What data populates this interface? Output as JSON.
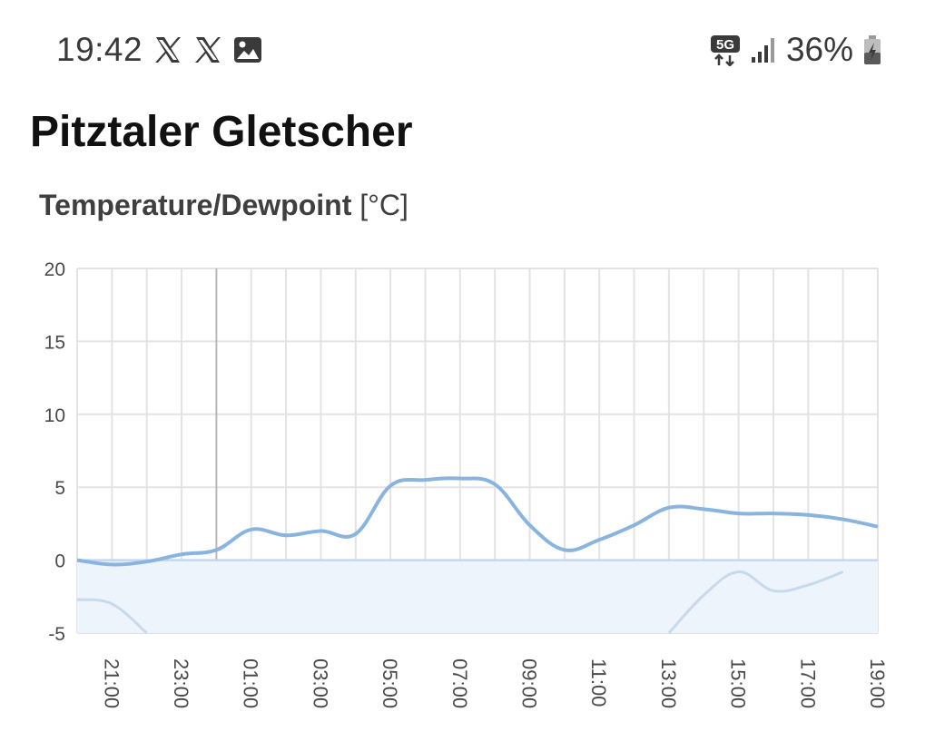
{
  "status_bar": {
    "time": "19:42",
    "battery": "36%",
    "left_icons": [
      "x-logo-icon",
      "x-logo-icon",
      "image-icon"
    ],
    "right_icons": [
      "5g-icon",
      "signal-icon",
      "battery-charging-icon"
    ]
  },
  "page": {
    "title": "Pitztaler Gletscher"
  },
  "chart_data": {
    "type": "line",
    "title": "Temperature/Dewpoint",
    "title_unit": "[°C]",
    "ylim": [
      -5,
      20
    ],
    "y_ticks": [
      20,
      15,
      10,
      5,
      0,
      -5
    ],
    "x_tick_labels": [
      "21:00",
      "23:00",
      "01:00",
      "03:00",
      "05:00",
      "07:00",
      "09:00",
      "11:00",
      "13:00",
      "15:00",
      "17:00",
      "19:00"
    ],
    "grid": true,
    "series": [
      {
        "color": "#8ab4e0",
        "x": [
          "20:00",
          "21:00",
          "22:00",
          "23:00",
          "00:00",
          "01:00",
          "02:00",
          "03:00",
          "04:00",
          "05:00",
          "06:00",
          "07:00",
          "08:00",
          "09:00",
          "10:00",
          "11:00",
          "12:00",
          "13:00",
          "14:00",
          "15:00",
          "16:00",
          "17:00",
          "18:00",
          "19:00"
        ],
        "values": [
          0.0,
          -0.3,
          -0.1,
          0.4,
          0.7,
          2.1,
          1.7,
          2.0,
          1.8,
          5.1,
          5.5,
          5.6,
          5.2,
          2.4,
          0.7,
          1.4,
          2.4,
          3.6,
          3.5,
          3.2,
          3.2,
          3.1,
          2.8,
          2.3
        ]
      },
      {
        "color": "#c7d9ec",
        "x": [
          "20:00",
          "21:00",
          "22:00",
          "13:00",
          "14:00",
          "15:00",
          "16:00",
          "17:00",
          "18:00"
        ],
        "values": [
          -2.7,
          -3.0,
          -5.0,
          -5.0,
          -2.4,
          -0.8,
          -2.1,
          -1.7,
          -0.8
        ]
      }
    ],
    "below_zero_fill_color": "#eef4fc",
    "zero_line_color": "#c5d6ee"
  }
}
